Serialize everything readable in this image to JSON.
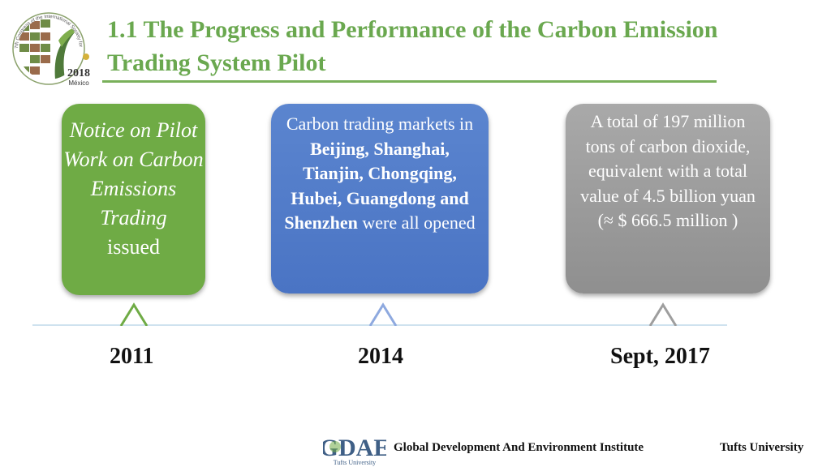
{
  "slide": {
    "title": "1.1 The Progress and Performance of the Carbon Emission Trading System Pilot"
  },
  "logo": {
    "year": "2018",
    "place": "México",
    "ring_text": "7th Congress of the International Society for Ecological Economics"
  },
  "boxes": {
    "green": {
      "italic_text": "Notice on Pilot Work on Carbon Emissions Trading",
      "plain_text": "issued",
      "color": "#6fab45"
    },
    "blue": {
      "t1": "Carbon trading markets in ",
      "b1": "Beijing, Shanghai, Tianjin, Chongqing, Hubei, Guangdong and Shenzhen",
      "t2": " were all opened",
      "color": "#4a74c4"
    },
    "gray": {
      "text": "A total of 197 million tons of carbon dioxide, equivalent with a total value of 4.5 billion yuan",
      "usd": "(≈ $ 666.5 million )",
      "color": "#999999"
    }
  },
  "timeline": {
    "years": [
      "2011",
      "2014",
      "Sept, 2017"
    ],
    "marker_colors": [
      "#6fab45",
      "#8ea9df",
      "#9e9e9e"
    ]
  },
  "footer": {
    "logo_text": "GDAE",
    "logo_sub": "Tufts University",
    "institute": "Global Development And Environment Institute",
    "university": "Tufts University"
  }
}
